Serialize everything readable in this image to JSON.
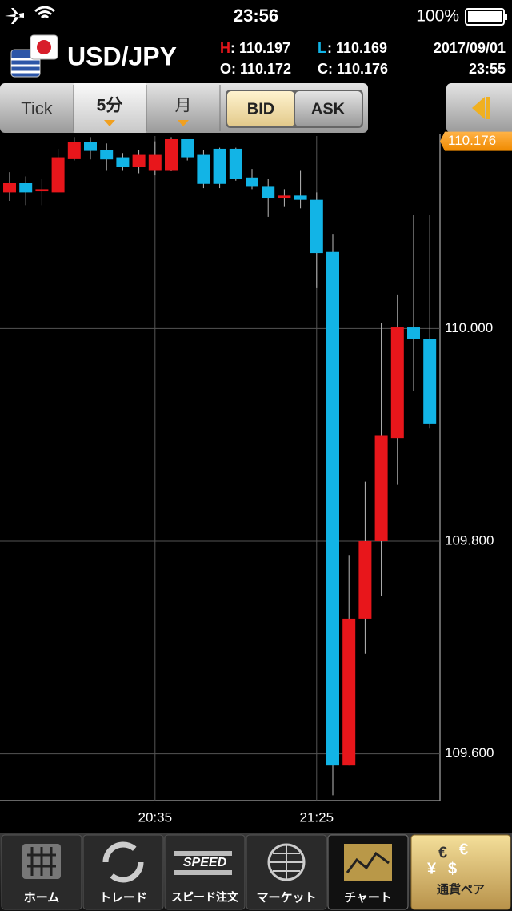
{
  "status_bar": {
    "time": "23:56",
    "battery": "100%"
  },
  "header": {
    "symbol": "USD/JPY",
    "quote": [
      {
        "key": "H",
        "value": ": 110.197"
      },
      {
        "key": "L",
        "value": ": 110.169"
      },
      {
        "key": "O",
        "value": ": 110.172"
      },
      {
        "key": "C",
        "value": ": 110.176"
      }
    ],
    "date": "2017/09/01",
    "time": "23:55"
  },
  "tabs": [
    "Tick",
    "5分",
    "月",
    "BID",
    "ASK"
  ],
  "chart_data": {
    "type": "candlestick",
    "categories": [
      null,
      null,
      null,
      null,
      null,
      null,
      null,
      null,
      null,
      "20:35",
      null,
      null,
      null,
      null,
      null,
      null,
      null,
      null,
      null,
      "21:25",
      null,
      null,
      null,
      null,
      null,
      null,
      null
    ],
    "open": [
      110.128,
      110.137,
      110.129,
      110.128,
      110.16,
      110.175,
      110.168,
      110.161,
      110.152,
      110.149,
      110.149,
      110.178,
      110.164,
      110.169,
      110.169,
      110.142,
      110.134,
      110.123,
      110.125,
      110.121,
      110.072,
      109.589,
      109.727,
      109.8,
      109.897,
      110.001,
      109.99
    ],
    "high": [
      110.147,
      110.143,
      110.141,
      110.169,
      110.18,
      110.18,
      110.174,
      110.165,
      110.168,
      110.176,
      110.18,
      110.178,
      110.168,
      110.17,
      110.17,
      110.15,
      110.141,
      110.131,
      110.149,
      110.128,
      110.089,
      109.787,
      109.856,
      110.005,
      110.032,
      110.107,
      110.107
    ],
    "low": [
      110.12,
      110.116,
      110.116,
      110.128,
      110.158,
      110.159,
      110.149,
      110.149,
      110.146,
      110.144,
      110.148,
      110.158,
      110.132,
      110.132,
      110.139,
      110.131,
      110.105,
      110.115,
      110.113,
      110.038,
      109.561,
      109.589,
      109.694,
      109.748,
      109.853,
      109.941,
      109.906
    ],
    "close": [
      110.137,
      110.128,
      110.131,
      110.161,
      110.175,
      110.167,
      110.159,
      110.152,
      110.164,
      110.164,
      110.178,
      110.161,
      110.136,
      110.136,
      110.141,
      110.134,
      110.123,
      110.125,
      110.121,
      110.071,
      109.589,
      109.727,
      109.8,
      109.899,
      110.001,
      109.99,
      109.91
    ],
    "up_color": "#e8161b",
    "down_color": "#12b4e6",
    "ylim": [
      109.556,
      110.181
    ],
    "yticks": [
      {
        "value": 109.6,
        "label": "109.600"
      },
      {
        "value": 109.8,
        "label": "109.800"
      },
      {
        "value": 110.0,
        "label": "110.000"
      }
    ],
    "last_price": 110.176,
    "grid": true
  },
  "nav": {
    "items": [
      "ホーム",
      "トレード",
      "スピード注文",
      "マーケット",
      "チャート",
      "通貨ペア"
    ],
    "speed_icon": "SPEED",
    "currency_icon": [
      "€",
      "¥",
      "$"
    ]
  }
}
